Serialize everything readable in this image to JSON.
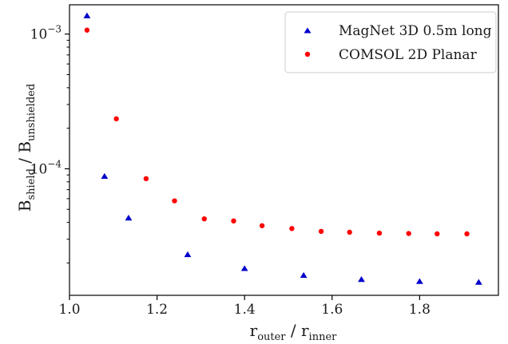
{
  "chart_data": {
    "type": "scatter",
    "xlabel": "r_outer / r_inner",
    "xlabel_main": "r",
    "xlabel_sub1": "outer",
    "xlabel_sep": " / r",
    "xlabel_sub2": "inner",
    "ylabel": "B_shield / B_unshielded",
    "ylabel_main": "B",
    "ylabel_sub1": "shield",
    "ylabel_sep": " / B",
    "ylabel_sub2": "unshielded",
    "xlim": [
      1.0,
      1.98
    ],
    "ylim": [
      1.15e-05,
      0.00165
    ],
    "yscale": "log",
    "x_ticks": [
      1.0,
      1.2,
      1.4,
      1.6,
      1.8
    ],
    "x_tick_labels": [
      "1.0",
      "1.2",
      "1.4",
      "1.6",
      "1.8"
    ],
    "y_ticks": [
      0.0001,
      0.001
    ],
    "y_tick_labels": [
      {
        "base": "10",
        "exp": "−4"
      },
      {
        "base": "10",
        "exp": "−3"
      }
    ],
    "grid": false,
    "legend_position": "top-right",
    "series": [
      {
        "name": "MagNet 3D 0.5m long",
        "marker": "triangle",
        "color": "#0000cc",
        "x": [
          1.04,
          1.08,
          1.135,
          1.27,
          1.4,
          1.535,
          1.667,
          1.8,
          1.935
        ],
        "y": [
          0.00137,
          8.8e-05,
          4.32e-05,
          2.31e-05,
          1.82e-05,
          1.62e-05,
          1.51e-05,
          1.46e-05,
          1.44e-05
        ]
      },
      {
        "name": "COMSOL 2D Planar",
        "marker": "circle",
        "color": "#ff0000",
        "x": [
          1.04,
          1.107,
          1.175,
          1.24,
          1.308,
          1.375,
          1.44,
          1.508,
          1.575,
          1.64,
          1.708,
          1.775,
          1.84,
          1.908
        ],
        "y": [
          0.00107,
          0.000235,
          8.45e-05,
          5.78e-05,
          4.25e-05,
          4.1e-05,
          3.78e-05,
          3.6e-05,
          3.43e-05,
          3.38e-05,
          3.33e-05,
          3.31e-05,
          3.29e-05,
          3.29e-05
        ]
      }
    ]
  }
}
